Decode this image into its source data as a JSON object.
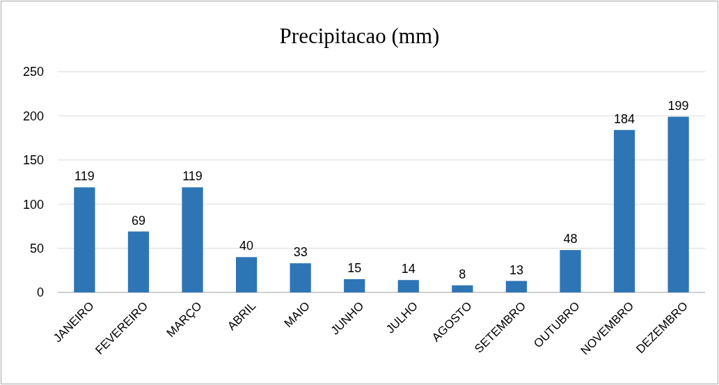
{
  "chart_data": {
    "type": "bar",
    "title": "Precipitacao (mm)",
    "categories": [
      "JANEIRO",
      "FEVEREIRO",
      "MARÇO",
      "ABRIL",
      "MAIO",
      "JUNHO",
      "JULHO",
      "AGOSTO",
      "SETEMBRO",
      "OUTUBRO",
      "NOVEMBRO",
      "DEZEMBRO"
    ],
    "values": [
      119,
      69,
      119,
      40,
      33,
      15,
      14,
      8,
      13,
      48,
      184,
      199
    ],
    "color": "#2e75b6",
    "ylim": [
      0,
      250
    ],
    "yticks": [
      0,
      50,
      100,
      150,
      200,
      250
    ],
    "grid": "y",
    "data_labels": true
  }
}
